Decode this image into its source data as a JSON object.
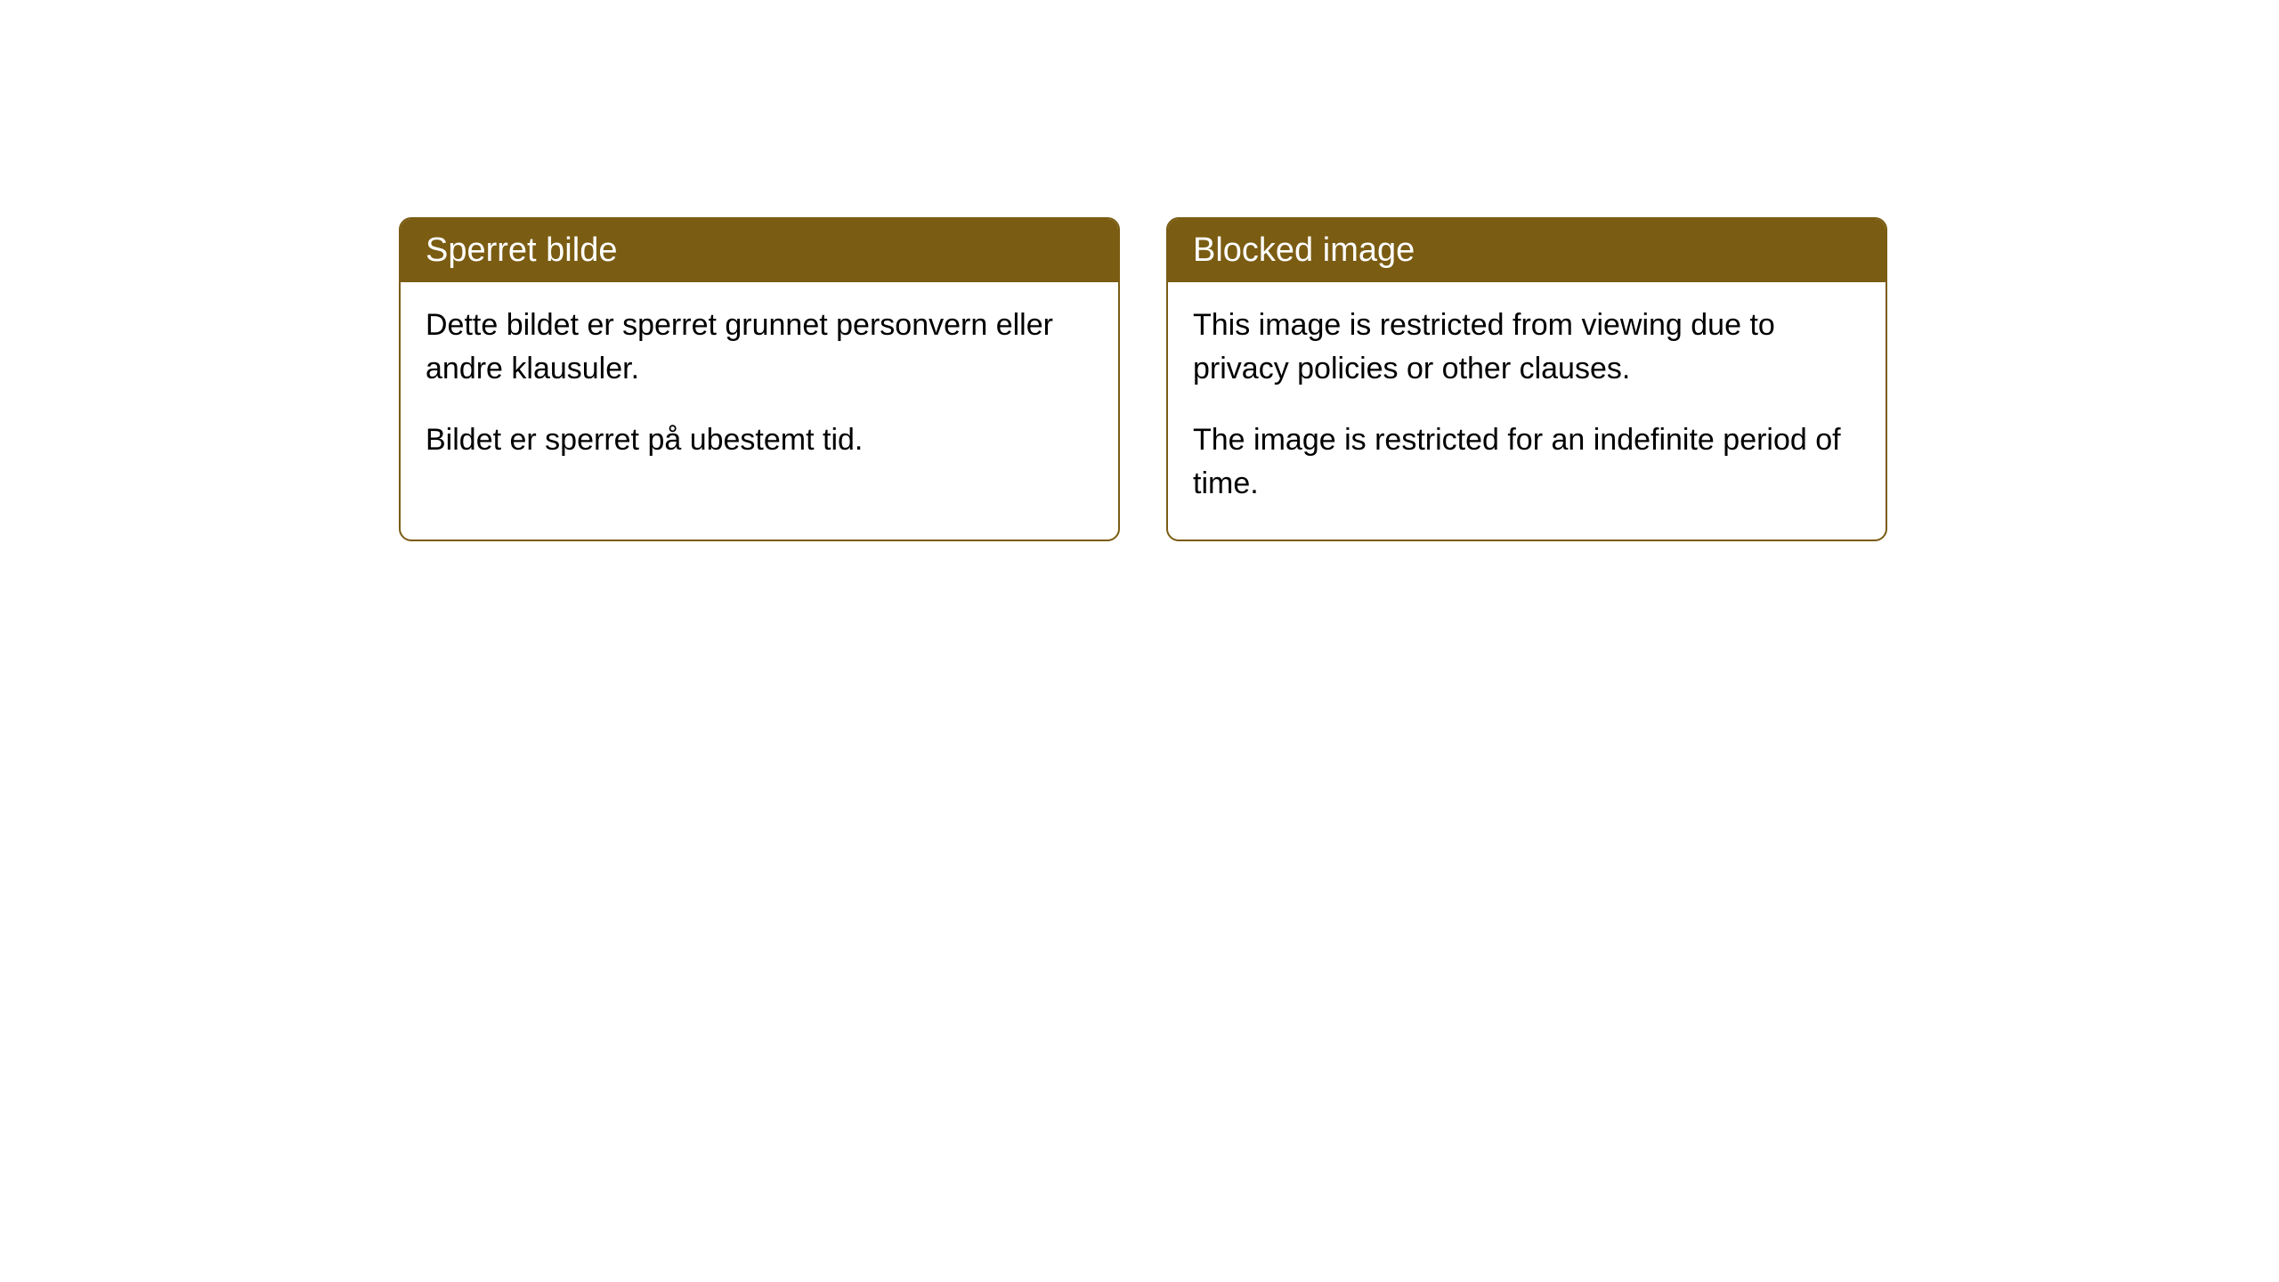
{
  "cards": [
    {
      "title": "Sperret bilde",
      "paragraph1": "Dette bildet er sperret grunnet personvern eller andre klausuler.",
      "paragraph2": "Bildet er sperret på ubestemt tid."
    },
    {
      "title": "Blocked image",
      "paragraph1": "This image is restricted from viewing due to privacy policies or other clauses.",
      "paragraph2": "The image is restricted for an indefinite period of time."
    }
  ],
  "styling": {
    "header_background": "#7a5c13",
    "header_text_color": "#ffffff",
    "border_color": "#7a5c13",
    "body_background": "#ffffff",
    "body_text_color": "#000000",
    "border_radius": 14,
    "header_fontsize": 38,
    "body_fontsize": 34
  }
}
